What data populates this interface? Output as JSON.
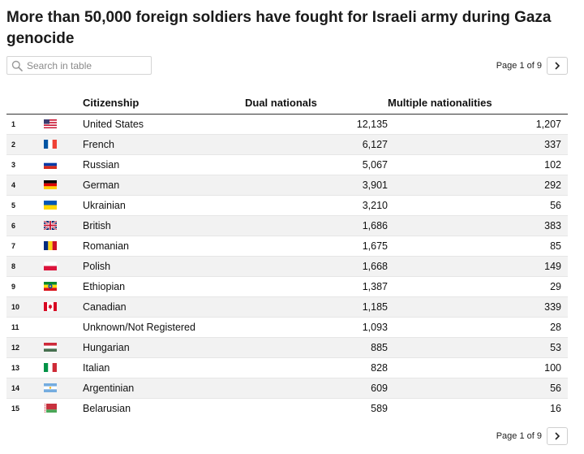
{
  "title": "More than 50,000 foreign soldiers have fought for Israeli army during Gaza genocide",
  "search": {
    "placeholder": "Search in table"
  },
  "pagination": {
    "top_label": "Page 1 of 9",
    "bottom_label": "Page 1 of 9"
  },
  "columns": {
    "citizenship": "Citizenship",
    "dual": "Dual nationals",
    "multiple": "Multiple nationalities"
  },
  "rows": [
    {
      "rank": "1",
      "flag": "us",
      "citizenship": "United States",
      "dual": "12,135",
      "multiple": "1,207"
    },
    {
      "rank": "2",
      "flag": "fr",
      "citizenship": "French",
      "dual": "6,127",
      "multiple": "337"
    },
    {
      "rank": "3",
      "flag": "ru",
      "citizenship": "Russian",
      "dual": "5,067",
      "multiple": "102"
    },
    {
      "rank": "4",
      "flag": "de",
      "citizenship": "German",
      "dual": "3,901",
      "multiple": "292"
    },
    {
      "rank": "5",
      "flag": "ua",
      "citizenship": "Ukrainian",
      "dual": "3,210",
      "multiple": "56"
    },
    {
      "rank": "6",
      "flag": "gb",
      "citizenship": "British",
      "dual": "1,686",
      "multiple": "383"
    },
    {
      "rank": "7",
      "flag": "ro",
      "citizenship": "Romanian",
      "dual": "1,675",
      "multiple": "85"
    },
    {
      "rank": "8",
      "flag": "pl",
      "citizenship": "Polish",
      "dual": "1,668",
      "multiple": "149"
    },
    {
      "rank": "9",
      "flag": "et",
      "citizenship": "Ethiopian",
      "dual": "1,387",
      "multiple": "29"
    },
    {
      "rank": "10",
      "flag": "ca",
      "citizenship": "Canadian",
      "dual": "1,185",
      "multiple": "339"
    },
    {
      "rank": "11",
      "flag": "",
      "citizenship": "Unknown/Not Registered",
      "dual": "1,093",
      "multiple": "28"
    },
    {
      "rank": "12",
      "flag": "hu",
      "citizenship": "Hungarian",
      "dual": "885",
      "multiple": "53"
    },
    {
      "rank": "13",
      "flag": "it",
      "citizenship": "Italian",
      "dual": "828",
      "multiple": "100"
    },
    {
      "rank": "14",
      "flag": "ar",
      "citizenship": "Argentinian",
      "dual": "609",
      "multiple": "56"
    },
    {
      "rank": "15",
      "flag": "by",
      "citizenship": "Belarusian",
      "dual": "589",
      "multiple": "16"
    }
  ]
}
